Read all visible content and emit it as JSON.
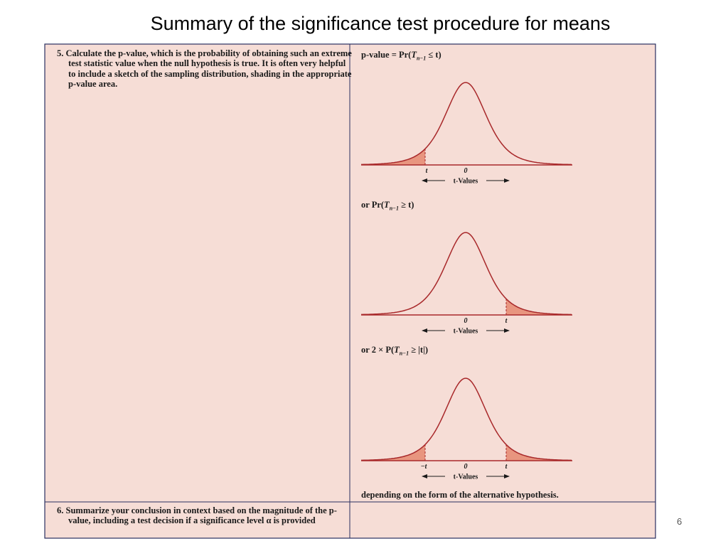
{
  "title": "Summary of the significance test procedure for means",
  "steps": [
    {
      "text": "5. Calculate the p-value, which is the probability of obtaining such an extreme test statistic value when the null hypothesis is true. It is often very helpful to include a sketch of the sampling distribution, shading in the appropriate p-value area."
    },
    {
      "text": "6. Summarize your conclusion in context based on the magnitude of the p-value, including a test decision if a significance level α is provided"
    }
  ],
  "diagrams": [
    {
      "formula": {
        "lead": "p-value = Pr(",
        "var": "T",
        "sub": "n−1",
        "rest": " ≤ t)"
      },
      "labels": [
        "t",
        "0"
      ],
      "axis": "t-Values"
    },
    {
      "formula": {
        "lead": "or Pr(",
        "var": "T",
        "sub": "n−1",
        "rest": " ≥ t)"
      },
      "labels": [
        "0",
        "t"
      ],
      "axis": "t-Values"
    },
    {
      "formula": {
        "lead": "or 2 × P(",
        "var": "T",
        "sub": "n−1",
        "rest": " ≥ |t|)"
      },
      "labels": [
        "−t",
        "0",
        "t"
      ],
      "axis": "t-Values"
    }
  ],
  "footer_note": "depending on the form of the alternative hypothesis.",
  "page_number": "6"
}
